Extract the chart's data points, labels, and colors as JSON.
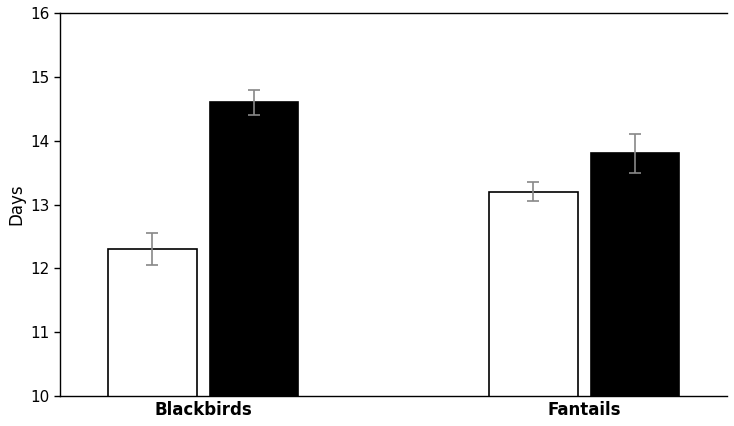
{
  "groups": [
    "Blackbirds",
    "Fantails"
  ],
  "bar1_values": [
    12.3,
    13.2
  ],
  "bar2_values": [
    14.6,
    13.8
  ],
  "bar1_errors": [
    0.25,
    0.15
  ],
  "bar2_errors": [
    0.2,
    0.3
  ],
  "bar1_color": "#ffffff",
  "bar2_color": "#000000",
  "bar_edgecolor": "#000000",
  "ylabel": "Days",
  "ylim": [
    10,
    16
  ],
  "yticks": [
    10,
    11,
    12,
    13,
    14,
    15,
    16
  ],
  "bar_width": 0.28,
  "group_centers": [
    1.0,
    2.2
  ],
  "background_color": "#ffffff",
  "error_color": "#888888",
  "xlabel_fontsize": 12,
  "ylabel_fontsize": 12,
  "tick_fontsize": 11,
  "bar_gap": 0.04
}
